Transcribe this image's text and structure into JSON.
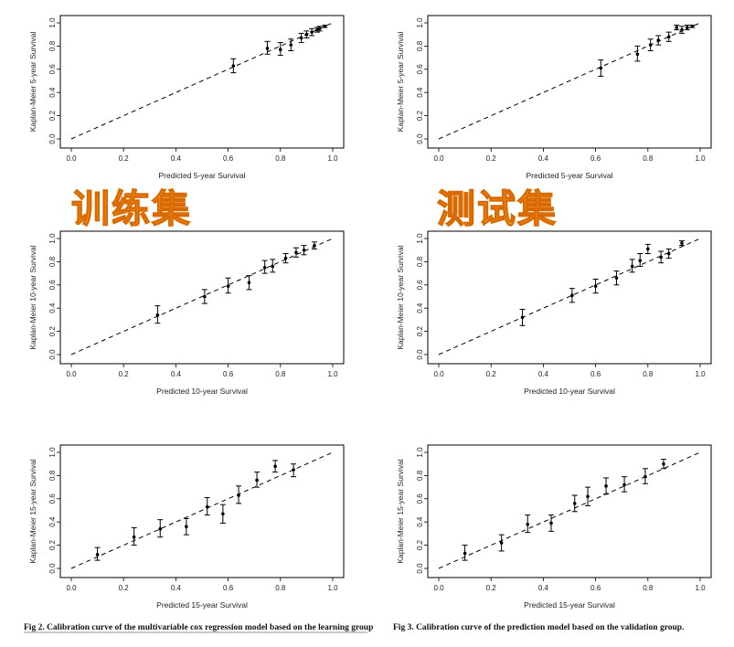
{
  "watermarks": {
    "left": "训练集",
    "right": "测试集"
  },
  "captions": {
    "fig2": "Fig 2. Calibration curve of the multivariable cox regression model based on the learning group",
    "fig3": "Fig 3. Calibration curve of the prediction model based on the validation group."
  },
  "colors": {
    "watermark": "#ff9a1f",
    "ink": "#000000"
  },
  "chart_data": [
    {
      "type": "scatter",
      "group": "learning",
      "xlabel": "Predicted 5-year Survival",
      "ylabel": "Kaplan-Meier 5-year Survival",
      "xlim": [
        0,
        1
      ],
      "ylim": [
        0,
        1
      ],
      "xticks": [
        "0.0",
        "0.2",
        "0.4",
        "0.6",
        "0.8",
        "1.0"
      ],
      "yticks": [
        "0.0",
        "0.2",
        "0.4",
        "0.6",
        "0.8",
        "1.0"
      ],
      "reference_line": "y = x (dashed)",
      "points": [
        {
          "x": 0.62,
          "y": 0.63,
          "lo": 0.57,
          "hi": 0.69
        },
        {
          "x": 0.75,
          "y": 0.78,
          "lo": 0.73,
          "hi": 0.84
        },
        {
          "x": 0.8,
          "y": 0.77,
          "lo": 0.72,
          "hi": 0.83
        },
        {
          "x": 0.84,
          "y": 0.81,
          "lo": 0.76,
          "hi": 0.86
        },
        {
          "x": 0.88,
          "y": 0.87,
          "lo": 0.83,
          "hi": 0.91
        },
        {
          "x": 0.9,
          "y": 0.9,
          "lo": 0.87,
          "hi": 0.93
        },
        {
          "x": 0.92,
          "y": 0.92,
          "lo": 0.89,
          "hi": 0.95
        },
        {
          "x": 0.94,
          "y": 0.94,
          "lo": 0.92,
          "hi": 0.96
        },
        {
          "x": 0.95,
          "y": 0.95,
          "lo": 0.93,
          "hi": 0.97
        },
        {
          "x": 0.97,
          "y": 0.97,
          "lo": 0.96,
          "hi": 0.98
        }
      ]
    },
    {
      "type": "scatter",
      "group": "validation",
      "xlabel": "Predicted 5-year Survival",
      "ylabel": "Kaplan-Meier 5-year Survival",
      "xlim": [
        0,
        1
      ],
      "ylim": [
        0,
        1
      ],
      "xticks": [
        "0.0",
        "0.2",
        "0.4",
        "0.6",
        "0.8",
        "1.0"
      ],
      "yticks": [
        "0.0",
        "0.2",
        "0.4",
        "0.6",
        "0.8",
        "1.0"
      ],
      "reference_line": "y = x (dashed)",
      "points": [
        {
          "x": 0.62,
          "y": 0.61,
          "lo": 0.54,
          "hi": 0.68
        },
        {
          "x": 0.76,
          "y": 0.73,
          "lo": 0.67,
          "hi": 0.8
        },
        {
          "x": 0.81,
          "y": 0.81,
          "lo": 0.76,
          "hi": 0.86
        },
        {
          "x": 0.84,
          "y": 0.85,
          "lo": 0.81,
          "hi": 0.89
        },
        {
          "x": 0.88,
          "y": 0.88,
          "lo": 0.84,
          "hi": 0.92
        },
        {
          "x": 0.91,
          "y": 0.96,
          "lo": 0.94,
          "hi": 0.98
        },
        {
          "x": 0.93,
          "y": 0.94,
          "lo": 0.91,
          "hi": 0.97
        },
        {
          "x": 0.95,
          "y": 0.96,
          "lo": 0.94,
          "hi": 0.98
        },
        {
          "x": 0.97,
          "y": 0.97,
          "lo": 0.96,
          "hi": 0.98
        }
      ]
    },
    {
      "type": "scatter",
      "group": "learning",
      "xlabel": "Predicted 10-year Survival",
      "ylabel": "Kaplan-Meier 10-year Survival",
      "xlim": [
        0,
        1
      ],
      "ylim": [
        0,
        1
      ],
      "xticks": [
        "0.0",
        "0.2",
        "0.4",
        "0.6",
        "0.8",
        "1.0"
      ],
      "yticks": [
        "0.0",
        "0.2",
        "0.4",
        "0.6",
        "0.8",
        "1.0"
      ],
      "reference_line": "y = x (dashed)",
      "points": [
        {
          "x": 0.33,
          "y": 0.34,
          "lo": 0.27,
          "hi": 0.42
        },
        {
          "x": 0.51,
          "y": 0.5,
          "lo": 0.44,
          "hi": 0.56
        },
        {
          "x": 0.6,
          "y": 0.59,
          "lo": 0.53,
          "hi": 0.66
        },
        {
          "x": 0.68,
          "y": 0.62,
          "lo": 0.56,
          "hi": 0.68
        },
        {
          "x": 0.74,
          "y": 0.75,
          "lo": 0.7,
          "hi": 0.81
        },
        {
          "x": 0.77,
          "y": 0.76,
          "lo": 0.71,
          "hi": 0.82
        },
        {
          "x": 0.82,
          "y": 0.83,
          "lo": 0.79,
          "hi": 0.87
        },
        {
          "x": 0.86,
          "y": 0.88,
          "lo": 0.84,
          "hi": 0.92
        },
        {
          "x": 0.89,
          "y": 0.9,
          "lo": 0.86,
          "hi": 0.94
        },
        {
          "x": 0.93,
          "y": 0.94,
          "lo": 0.91,
          "hi": 0.97
        }
      ]
    },
    {
      "type": "scatter",
      "group": "validation",
      "xlabel": "Predicted 10-year Survival",
      "ylabel": "Kaplan-Meier 10-year Survival",
      "xlim": [
        0,
        1
      ],
      "ylim": [
        0,
        1
      ],
      "xticks": [
        "0.0",
        "0.2",
        "0.4",
        "0.6",
        "0.8",
        "1.0"
      ],
      "yticks": [
        "0.0",
        "0.2",
        "0.4",
        "0.6",
        "0.8",
        "1.0"
      ],
      "reference_line": "y = x (dashed)",
      "points": [
        {
          "x": 0.32,
          "y": 0.32,
          "lo": 0.25,
          "hi": 0.39
        },
        {
          "x": 0.51,
          "y": 0.51,
          "lo": 0.45,
          "hi": 0.57
        },
        {
          "x": 0.6,
          "y": 0.59,
          "lo": 0.53,
          "hi": 0.65
        },
        {
          "x": 0.68,
          "y": 0.66,
          "lo": 0.6,
          "hi": 0.72
        },
        {
          "x": 0.74,
          "y": 0.76,
          "lo": 0.71,
          "hi": 0.82
        },
        {
          "x": 0.77,
          "y": 0.81,
          "lo": 0.76,
          "hi": 0.87
        },
        {
          "x": 0.8,
          "y": 0.91,
          "lo": 0.87,
          "hi": 0.95
        },
        {
          "x": 0.85,
          "y": 0.84,
          "lo": 0.79,
          "hi": 0.89
        },
        {
          "x": 0.88,
          "y": 0.87,
          "lo": 0.83,
          "hi": 0.91
        },
        {
          "x": 0.93,
          "y": 0.96,
          "lo": 0.94,
          "hi": 0.98
        }
      ]
    },
    {
      "type": "scatter",
      "group": "learning",
      "xlabel": "Predicted 15-year Survival",
      "ylabel": "Kaplan-Meier 15-year Survival",
      "xlim": [
        0,
        1
      ],
      "ylim": [
        0,
        1
      ],
      "xticks": [
        "0.0",
        "0.2",
        "0.4",
        "0.6",
        "0.8",
        "1.0"
      ],
      "yticks": [
        "0.0",
        "0.2",
        "0.4",
        "0.6",
        "0.8",
        "1.0"
      ],
      "reference_line": "y = x (dashed)",
      "points": [
        {
          "x": 0.1,
          "y": 0.12,
          "lo": 0.07,
          "hi": 0.18
        },
        {
          "x": 0.24,
          "y": 0.27,
          "lo": 0.2,
          "hi": 0.35
        },
        {
          "x": 0.34,
          "y": 0.34,
          "lo": 0.27,
          "hi": 0.42
        },
        {
          "x": 0.44,
          "y": 0.36,
          "lo": 0.29,
          "hi": 0.43
        },
        {
          "x": 0.52,
          "y": 0.53,
          "lo": 0.46,
          "hi": 0.61
        },
        {
          "x": 0.58,
          "y": 0.47,
          "lo": 0.39,
          "hi": 0.55
        },
        {
          "x": 0.64,
          "y": 0.63,
          "lo": 0.56,
          "hi": 0.71
        },
        {
          "x": 0.71,
          "y": 0.76,
          "lo": 0.7,
          "hi": 0.83
        },
        {
          "x": 0.78,
          "y": 0.88,
          "lo": 0.83,
          "hi": 0.93
        },
        {
          "x": 0.85,
          "y": 0.85,
          "lo": 0.79,
          "hi": 0.9
        }
      ]
    },
    {
      "type": "scatter",
      "group": "validation",
      "xlabel": "Predicted 15-year Survival",
      "ylabel": "Kaplan-Meier 15-year Survival",
      "xlim": [
        0,
        1
      ],
      "ylim": [
        0,
        1
      ],
      "xticks": [
        "0.0",
        "0.2",
        "0.4",
        "0.6",
        "0.8",
        "1.0"
      ],
      "yticks": [
        "0.0",
        "0.2",
        "0.4",
        "0.6",
        "0.8",
        "1.0"
      ],
      "reference_line": "y = x (dashed)",
      "points": [
        {
          "x": 0.1,
          "y": 0.13,
          "lo": 0.07,
          "hi": 0.2
        },
        {
          "x": 0.24,
          "y": 0.22,
          "lo": 0.15,
          "hi": 0.29
        },
        {
          "x": 0.34,
          "y": 0.38,
          "lo": 0.31,
          "hi": 0.46
        },
        {
          "x": 0.43,
          "y": 0.39,
          "lo": 0.32,
          "hi": 0.46
        },
        {
          "x": 0.52,
          "y": 0.56,
          "lo": 0.49,
          "hi": 0.63
        },
        {
          "x": 0.57,
          "y": 0.62,
          "lo": 0.54,
          "hi": 0.7
        },
        {
          "x": 0.64,
          "y": 0.71,
          "lo": 0.64,
          "hi": 0.78
        },
        {
          "x": 0.71,
          "y": 0.72,
          "lo": 0.66,
          "hi": 0.79
        },
        {
          "x": 0.79,
          "y": 0.79,
          "lo": 0.73,
          "hi": 0.86
        },
        {
          "x": 0.86,
          "y": 0.9,
          "lo": 0.86,
          "hi": 0.94
        }
      ]
    }
  ]
}
